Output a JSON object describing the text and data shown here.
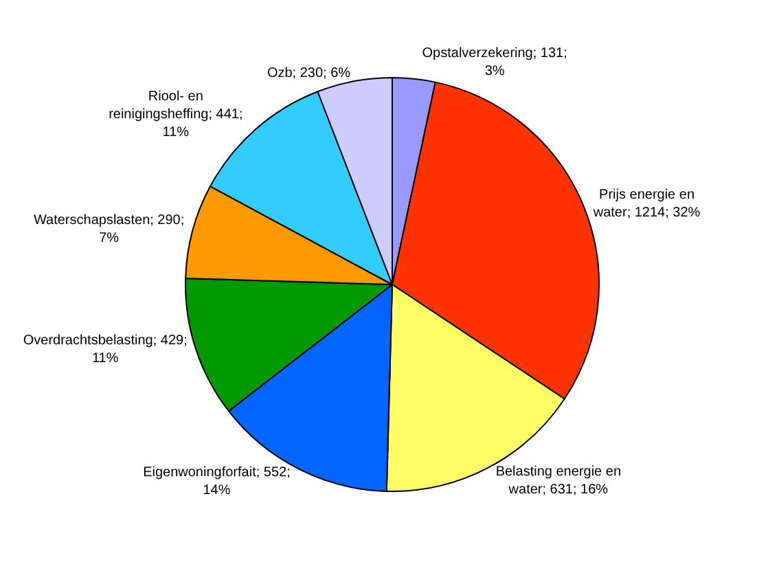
{
  "chart_data": {
    "type": "pie",
    "categories": [
      "Opstalverzekering",
      "Prijs energie en water",
      "Belasting energie en water",
      "Eigenwoningforfait",
      "Overdrachtsbelasting",
      "Waterschapslasten",
      "Riool- en reinigingsheffing",
      "Ozb"
    ],
    "values": [
      131,
      1214,
      631,
      552,
      429,
      290,
      441,
      230
    ],
    "value_labels": [
      "131; 3%",
      "1214; 32%",
      "631; 16%",
      "552; 14%",
      "429; 11%",
      "290; 7%",
      "441; 11%",
      "230; 6%"
    ],
    "colors": [
      "#9999ff",
      "#ff3300",
      "#ffff66",
      "#0066ff",
      "#009900",
      "#ff9900",
      "#33ccff",
      "#ccccff"
    ],
    "legend": false
  }
}
